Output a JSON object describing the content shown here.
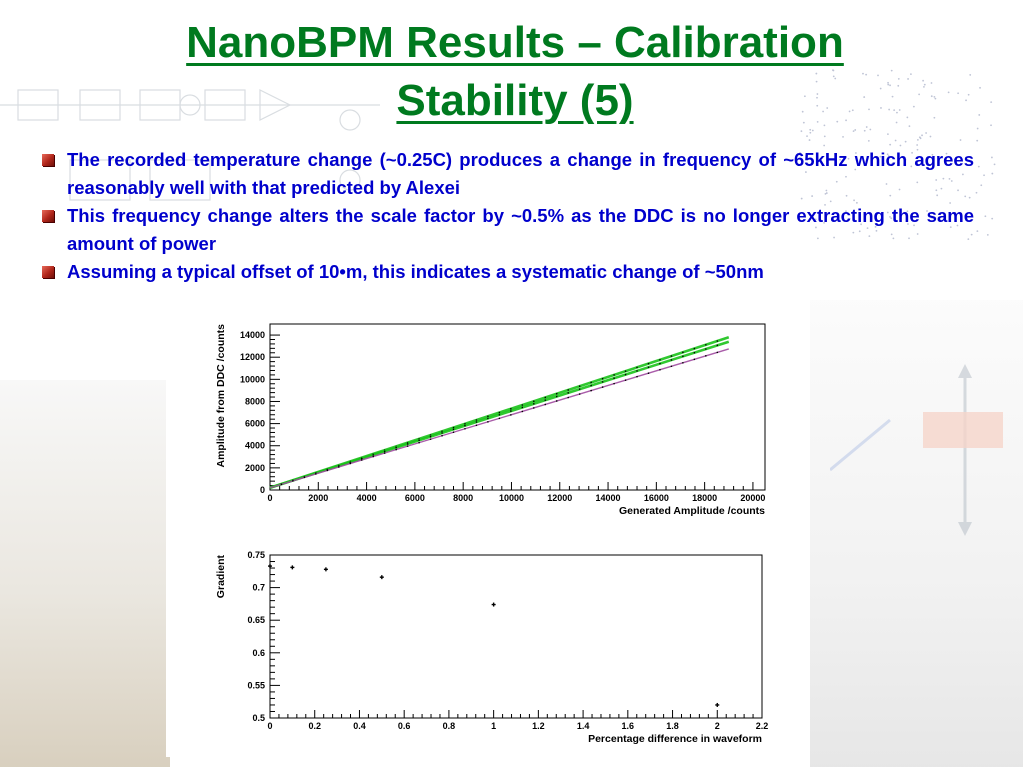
{
  "slide": {
    "title_line1": "NanoBPM Results – Calibration",
    "title_line2": "Stability (5)",
    "bullets": [
      "The recorded temperature change (~0.25C) produces a change in frequency of ~65kHz which agrees reasonably well with that predicted by Alexei",
      "This frequency change alters the scale factor by ~0.5% as the DDC is no longer extracting the same amount of power",
      "Assuming a typical offset of 10•m, this indicates a systematic change of ~50nm"
    ]
  },
  "colors": {
    "title": "#007a1f",
    "bullet_text": "#0000cc",
    "series_green": "#19c219",
    "series_purple": "#a04aa0"
  },
  "chart_data": [
    {
      "type": "line",
      "xlabel": "Generated Amplitude /counts",
      "ylabel": "Amplitude from DDC /counts",
      "xlim": [
        0,
        20500
      ],
      "ylim": [
        0,
        15000
      ],
      "x_ticks": [
        0,
        2000,
        4000,
        6000,
        8000,
        10000,
        12000,
        14000,
        16000,
        18000,
        20000
      ],
      "y_ticks": [
        0,
        2000,
        4000,
        6000,
        8000,
        10000,
        12000,
        14000
      ],
      "grid": false,
      "series": [
        {
          "x": [
            0,
            19000
          ],
          "y": [
            200,
            13800
          ],
          "color": "#19c219"
        },
        {
          "x": [
            0,
            19000
          ],
          "y": [
            200,
            13400
          ],
          "color": "#19c219"
        },
        {
          "x": [
            0,
            19000
          ],
          "y": [
            200,
            12750
          ],
          "color": "#a04aa0"
        }
      ]
    },
    {
      "type": "scatter",
      "xlabel": "Percentage difference in waveform",
      "ylabel": "Gradient",
      "xlim": [
        0,
        2.2
      ],
      "ylim": [
        0.5,
        0.75
      ],
      "x_ticks": [
        0,
        0.2,
        0.4,
        0.6,
        0.8,
        1,
        1.2,
        1.4,
        1.6,
        1.8,
        2,
        2.2
      ],
      "y_ticks": [
        0.5,
        0.55,
        0.6,
        0.65,
        0.7,
        0.75
      ],
      "grid": false,
      "series": [
        {
          "x": [
            0,
            0.1,
            0.25,
            0.5,
            1.0,
            2.0
          ],
          "y": [
            0.733,
            0.731,
            0.728,
            0.716,
            0.674,
            0.52
          ]
        }
      ]
    }
  ]
}
